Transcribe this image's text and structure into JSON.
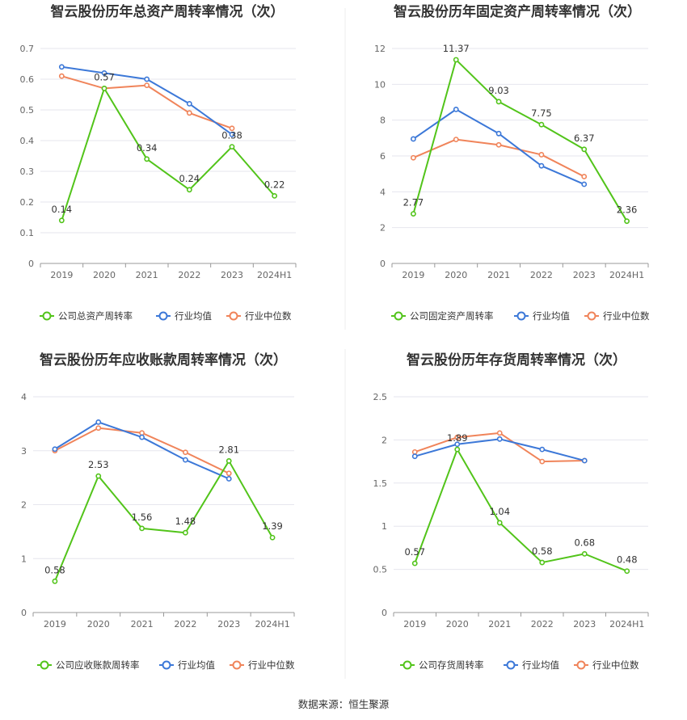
{
  "source": "数据来源：恒生聚源",
  "legend_common": [
    "行业均值",
    "行业中位数"
  ],
  "colors": {
    "company": "#52c41a",
    "industry_avg": "#3c78d8",
    "industry_median": "#f0845a"
  },
  "chart_data": [
    {
      "type": "line",
      "title": "智云股份历年总资产周转率情况（次）",
      "categories": [
        "2019",
        "2020",
        "2021",
        "2022",
        "2023",
        "2024H1"
      ],
      "ylim": [
        0,
        0.7
      ],
      "yticks": [
        "0",
        "0.1",
        "0.2",
        "0.3",
        "0.4",
        "0.5",
        "0.6",
        "0.7"
      ],
      "series": [
        {
          "name": "公司总资产周转率",
          "values": [
            0.14,
            0.57,
            0.34,
            0.24,
            0.38,
            0.22
          ],
          "labels": [
            "0.14",
            "0.57",
            "0.34",
            "0.24",
            "0.38",
            "0.22"
          ]
        },
        {
          "name": "行业均值",
          "values": [
            0.64,
            0.62,
            0.6,
            0.52,
            0.42,
            null
          ]
        },
        {
          "name": "行业中位数",
          "values": [
            0.61,
            0.57,
            0.58,
            0.49,
            0.44,
            null
          ]
        }
      ],
      "grid": true,
      "legend": "bottom"
    },
    {
      "type": "line",
      "title": "智云股份历年固定资产周转率情况（次）",
      "categories": [
        "2019",
        "2020",
        "2021",
        "2022",
        "2023",
        "2024H1"
      ],
      "ylim": [
        0,
        12
      ],
      "yticks": [
        "0",
        "2",
        "4",
        "6",
        "8",
        "10",
        "12"
      ],
      "series": [
        {
          "name": "公司固定资产周转率",
          "values": [
            2.77,
            11.37,
            9.03,
            7.75,
            6.37,
            2.36
          ],
          "labels": [
            "2.77",
            "11.37",
            "9.03",
            "7.75",
            "6.37",
            "2.36"
          ]
        },
        {
          "name": "行业均值",
          "values": [
            6.95,
            8.6,
            7.25,
            5.45,
            4.42,
            null
          ]
        },
        {
          "name": "行业中位数",
          "values": [
            5.9,
            6.92,
            6.62,
            6.07,
            4.85,
            null
          ]
        }
      ],
      "grid": true,
      "legend": "bottom"
    },
    {
      "type": "line",
      "title": "智云股份历年应收账款周转率情况（次）",
      "categories": [
        "2019",
        "2020",
        "2021",
        "2022",
        "2023",
        "2024H1"
      ],
      "ylim": [
        0,
        4
      ],
      "yticks": [
        "0",
        "1",
        "2",
        "3",
        "4"
      ],
      "series": [
        {
          "name": "公司应收账款周转率",
          "values": [
            0.58,
            2.53,
            1.56,
            1.48,
            2.81,
            1.39
          ],
          "labels": [
            "0.58",
            "2.53",
            "1.56",
            "1.48",
            "2.81",
            "1.39"
          ]
        },
        {
          "name": "行业均值",
          "values": [
            3.03,
            3.53,
            3.25,
            2.83,
            2.48,
            null
          ]
        },
        {
          "name": "行业中位数",
          "values": [
            3.0,
            3.42,
            3.33,
            2.97,
            2.58,
            null
          ]
        }
      ],
      "grid": true,
      "legend": "bottom"
    },
    {
      "type": "line",
      "title": "智云股份历年存货周转率情况（次）",
      "categories": [
        "2019",
        "2020",
        "2021",
        "2022",
        "2023",
        "2024H1"
      ],
      "ylim": [
        0,
        2.5
      ],
      "yticks": [
        "0",
        "0.5",
        "1",
        "1.5",
        "2",
        "2.5"
      ],
      "series": [
        {
          "name": "公司存货周转率",
          "values": [
            0.57,
            1.89,
            1.04,
            0.58,
            0.68,
            0.48
          ],
          "labels": [
            "0.57",
            "1.89",
            "1.04",
            "0.58",
            "0.68",
            "0.48"
          ]
        },
        {
          "name": "行业均值",
          "values": [
            1.81,
            1.95,
            2.01,
            1.89,
            1.76,
            null
          ]
        },
        {
          "name": "行业中位数",
          "values": [
            1.86,
            2.03,
            2.08,
            1.75,
            1.76,
            null
          ]
        }
      ],
      "grid": true,
      "legend": "bottom"
    }
  ]
}
